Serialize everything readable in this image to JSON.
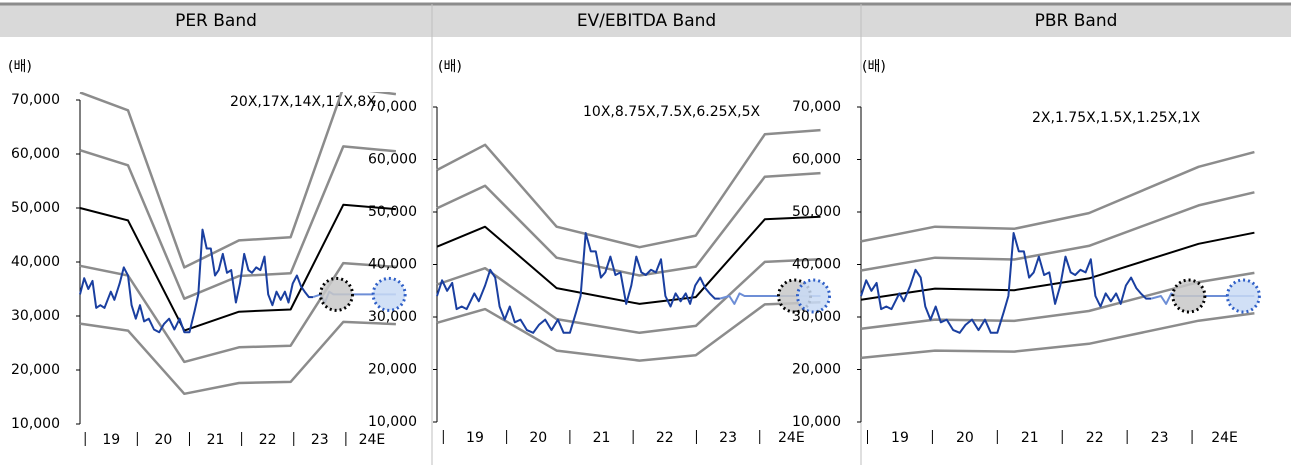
{
  "chart_data": [
    {
      "type": "line",
      "title": "PER Band",
      "y_unit": "(배)",
      "annotation": "20X,17X,14X,11X,8X",
      "categories": [
        "19",
        "20",
        "21",
        "22",
        "23",
        "24E"
      ],
      "xlim": [
        -0.1,
        6
      ],
      "xticks": [
        0,
        1,
        2,
        3,
        4,
        5
      ],
      "ylim": [
        10000,
        70000
      ],
      "yticks": [
        {
          "value": 10000,
          "label": "10,000"
        },
        {
          "value": 20000,
          "label": "20,000"
        },
        {
          "value": 30000,
          "label": "30,000"
        },
        {
          "value": 40000,
          "label": "40,000"
        },
        {
          "value": 50000,
          "label": "50,000"
        },
        {
          "value": 60000,
          "label": "60,000"
        },
        {
          "value": 70000,
          "label": "70,000"
        }
      ],
      "series": [
        {
          "color": "#8c8c8c",
          "x": [
            -0.1,
            0.82,
            1.9,
            2.95,
            3.94,
            4.95,
            5.96
          ],
          "values": [
            71400,
            68100,
            39000,
            44000,
            44600,
            72300,
            71100
          ]
        },
        {
          "color": "#8c8c8c",
          "x": [
            -0.1,
            0.82,
            1.9,
            2.95,
            3.94,
            4.95,
            5.96
          ],
          "values": [
            60700,
            57900,
            33200,
            37400,
            37900,
            61400,
            60500
          ]
        },
        {
          "color": "#000000",
          "x": [
            -0.1,
            0.82,
            1.9,
            2.95,
            3.94,
            4.95,
            5.96
          ],
          "values": [
            50000,
            47700,
            27300,
            30800,
            31200,
            50600,
            49800
          ]
        },
        {
          "color": "#8c8c8c",
          "x": [
            -0.1,
            0.82,
            1.9,
            2.95,
            3.94,
            4.95,
            5.96
          ],
          "values": [
            39300,
            37500,
            21500,
            24200,
            24500,
            39800,
            39100
          ]
        },
        {
          "color": "#8c8c8c",
          "x": [
            -0.1,
            0.82,
            1.9,
            2.95,
            3.94,
            4.95,
            5.96
          ],
          "values": [
            28600,
            27300,
            15600,
            17600,
            17800,
            28900,
            28500
          ]
        },
        {
          "color": "#1a3fa0",
          "x": [
            -0.1,
            -0.02,
            0.06,
            0.14,
            0.21,
            0.29,
            0.37,
            0.49,
            0.56,
            0.66,
            0.74,
            0.82,
            0.89,
            0.97,
            1.05,
            1.13,
            1.22,
            1.32,
            1.42,
            1.51,
            1.61,
            1.71,
            1.81,
            1.9,
            2.0,
            2.1,
            2.17,
            2.25,
            2.33,
            2.41,
            2.49,
            2.56,
            2.64,
            2.72,
            2.8,
            2.89,
            2.97,
            3.05,
            3.13,
            3.2,
            3.28,
            3.36,
            3.44,
            3.51,
            3.59,
            3.67,
            3.75,
            3.83,
            3.9,
            3.98,
            4.06,
            4.14,
            4.21,
            4.29,
            4.37
          ],
          "values": [
            34000,
            37000,
            35000,
            36500,
            31500,
            32000,
            31500,
            34500,
            33000,
            36000,
            39000,
            37500,
            32000,
            29500,
            32000,
            29000,
            29500,
            27500,
            27000,
            28500,
            29500,
            27500,
            29500,
            27000,
            27000,
            31000,
            34000,
            46000,
            42500,
            42500,
            37500,
            38500,
            41500,
            38000,
            38500,
            32500,
            36000,
            41500,
            38500,
            38000,
            39000,
            38500,
            41000,
            34000,
            32000,
            34500,
            33000,
            34500,
            32500,
            36000,
            37500,
            35500,
            34500,
            33500,
            33500
          ]
        },
        {
          "color": "#6d8ed6",
          "x": [
            4.37,
            4.52,
            4.6,
            4.68,
            4.76,
            5.96
          ],
          "values": [
            33500,
            34000,
            32500,
            34500,
            34000,
            34000
          ]
        }
      ],
      "highlights": [
        {
          "x": 4.82,
          "y": 34000,
          "color": "#000000",
          "fill": "#c8c8c8"
        },
        {
          "x": 5.83,
          "y": 34000,
          "color": "#2f5fc7",
          "fill": "#c9daf5"
        }
      ]
    },
    {
      "type": "line",
      "title": "EV/EBITDA Band",
      "y_unit": "(배)",
      "annotation": "10X,8.75X,7.5X,6.25X,5X",
      "categories": [
        "19",
        "20",
        "21",
        "22",
        "23",
        "24E"
      ],
      "xlim": [
        -0.1,
        6
      ],
      "xticks": [
        0,
        1,
        2,
        3,
        4,
        5
      ],
      "ylim": [
        10000,
        70000
      ],
      "yticks": [
        {
          "value": 10000,
          "label": "10,000"
        },
        {
          "value": 20000,
          "label": "20,000"
        },
        {
          "value": 30000,
          "label": "30,000"
        },
        {
          "value": 40000,
          "label": "40,000"
        },
        {
          "value": 50000,
          "label": "50,000"
        },
        {
          "value": 60000,
          "label": "60,000"
        },
        {
          "value": 70000,
          "label": "70,000"
        }
      ],
      "series": [
        {
          "color": "#8c8c8c",
          "x": [
            -0.1,
            0.66,
            1.79,
            3.1,
            3.99,
            5.08,
            5.96
          ],
          "values": [
            58000,
            62800,
            47200,
            43300,
            45500,
            64800,
            65600
          ]
        },
        {
          "color": "#8c8c8c",
          "x": [
            -0.1,
            0.66,
            1.79,
            3.1,
            3.99,
            5.08,
            5.96
          ],
          "values": [
            50700,
            55000,
            41300,
            37900,
            39600,
            56700,
            57400
          ]
        },
        {
          "color": "#000000",
          "x": [
            -0.1,
            0.66,
            1.79,
            3.1,
            3.99,
            5.08,
            5.96
          ],
          "values": [
            43400,
            47200,
            35500,
            32500,
            33800,
            48600,
            49100
          ]
        },
        {
          "color": "#8c8c8c",
          "x": [
            -0.1,
            0.66,
            1.79,
            3.1,
            3.99,
            5.08,
            5.96
          ],
          "values": [
            36200,
            39300,
            29600,
            27000,
            28300,
            40500,
            41000
          ]
        },
        {
          "color": "#8c8c8c",
          "x": [
            -0.1,
            0.66,
            1.79,
            3.1,
            3.99,
            5.08,
            5.96
          ],
          "values": [
            28900,
            31500,
            23600,
            21700,
            22700,
            32400,
            32800
          ]
        },
        {
          "color": "#1a3fa0",
          "x": [
            -0.1,
            -0.02,
            0.06,
            0.14,
            0.21,
            0.29,
            0.37,
            0.49,
            0.56,
            0.66,
            0.74,
            0.82,
            0.89,
            0.97,
            1.05,
            1.13,
            1.22,
            1.32,
            1.42,
            1.51,
            1.61,
            1.71,
            1.81,
            1.9,
            2.0,
            2.1,
            2.17,
            2.25,
            2.33,
            2.41,
            2.49,
            2.56,
            2.64,
            2.72,
            2.8,
            2.89,
            2.97,
            3.05,
            3.13,
            3.2,
            3.28,
            3.36,
            3.44,
            3.51,
            3.59,
            3.67,
            3.75,
            3.83,
            3.9,
            3.98,
            4.06,
            4.14,
            4.21,
            4.29,
            4.37
          ],
          "values": [
            34000,
            37000,
            35000,
            36500,
            31500,
            32000,
            31500,
            34500,
            33000,
            36000,
            39000,
            37500,
            32000,
            29500,
            32000,
            29000,
            29500,
            27500,
            27000,
            28500,
            29500,
            27500,
            29500,
            27000,
            27000,
            31000,
            34000,
            46000,
            42500,
            42500,
            37500,
            38500,
            41500,
            38000,
            38500,
            32500,
            36000,
            41500,
            38500,
            38000,
            39000,
            38500,
            41000,
            34000,
            32000,
            34500,
            33000,
            34500,
            32500,
            36000,
            37500,
            35500,
            34500,
            33500,
            33500
          ]
        },
        {
          "color": "#6d8ed6",
          "x": [
            4.37,
            4.52,
            4.6,
            4.68,
            4.76,
            5.96
          ],
          "values": [
            33500,
            34000,
            32500,
            34500,
            34000,
            34000
          ]
        }
      ],
      "highlights": [
        {
          "x": 5.55,
          "y": 34000,
          "color": "#000000",
          "fill": "#c8c8c8"
        },
        {
          "x": 5.85,
          "y": 34000,
          "color": "#2f5fc7",
          "fill": "#c9daf5"
        }
      ]
    },
    {
      "type": "line",
      "title": "PBR Band",
      "y_unit": "(배)",
      "annotation": "2X,1.75X,1.5X,1.25X,1X",
      "categories": [
        "19",
        "20",
        "21",
        "22",
        "23",
        "24E"
      ],
      "xlim": [
        -0.1,
        6
      ],
      "xticks": [
        0,
        1,
        2,
        3,
        4,
        5
      ],
      "ylim": [
        10000,
        70000
      ],
      "yticks": [
        {
          "value": 10000,
          "label": "10,000"
        },
        {
          "value": 20000,
          "label": "20,000"
        },
        {
          "value": 30000,
          "label": "30,000"
        },
        {
          "value": 40000,
          "label": "40,000"
        },
        {
          "value": 50000,
          "label": "50,000"
        },
        {
          "value": 60000,
          "label": "60,000"
        },
        {
          "value": 70000,
          "label": "70,000"
        }
      ],
      "series": [
        {
          "color": "#8c8c8c",
          "x": [
            -0.1,
            1.04,
            2.26,
            3.41,
            5.1,
            5.96
          ],
          "values": [
            44400,
            47200,
            46800,
            49800,
            58600,
            61400
          ]
        },
        {
          "color": "#8c8c8c",
          "x": [
            -0.1,
            1.04,
            2.26,
            3.41,
            5.1,
            5.96
          ],
          "values": [
            38850,
            41300,
            40950,
            43550,
            51250,
            53750
          ]
        },
        {
          "color": "#000000",
          "x": [
            -0.1,
            1.04,
            2.26,
            3.41,
            5.1,
            5.96
          ],
          "values": [
            33300,
            35400,
            35100,
            37350,
            43950,
            46050
          ]
        },
        {
          "color": "#8c8c8c",
          "x": [
            -0.1,
            1.04,
            2.26,
            3.41,
            5.1,
            5.96
          ],
          "values": [
            27750,
            29500,
            29250,
            31150,
            36650,
            38400
          ]
        },
        {
          "color": "#8c8c8c",
          "x": [
            -0.1,
            1.04,
            2.26,
            3.41,
            5.1,
            5.96
          ],
          "values": [
            22200,
            23600,
            23400,
            24900,
            29300,
            30700
          ]
        },
        {
          "color": "#1a3fa0",
          "x": [
            -0.1,
            -0.02,
            0.06,
            0.14,
            0.21,
            0.29,
            0.37,
            0.49,
            0.56,
            0.66,
            0.74,
            0.82,
            0.89,
            0.97,
            1.05,
            1.13,
            1.22,
            1.32,
            1.42,
            1.51,
            1.61,
            1.71,
            1.81,
            1.9,
            2.0,
            2.1,
            2.17,
            2.25,
            2.33,
            2.41,
            2.49,
            2.56,
            2.64,
            2.72,
            2.8,
            2.89,
            2.97,
            3.05,
            3.13,
            3.2,
            3.28,
            3.36,
            3.44,
            3.51,
            3.59,
            3.67,
            3.75,
            3.83,
            3.9,
            3.98,
            4.06,
            4.14,
            4.21,
            4.29,
            4.37
          ],
          "values": [
            34000,
            37000,
            35000,
            36500,
            31500,
            32000,
            31500,
            34500,
            33000,
            36000,
            39000,
            37500,
            32000,
            29500,
            32000,
            29000,
            29500,
            27500,
            27000,
            28500,
            29500,
            27500,
            29500,
            27000,
            27000,
            31000,
            34000,
            46000,
            42500,
            42500,
            37500,
            38500,
            41500,
            38000,
            38500,
            32500,
            36000,
            41500,
            38500,
            38000,
            39000,
            38500,
            41000,
            34000,
            32000,
            34500,
            33000,
            34500,
            32500,
            36000,
            37500,
            35500,
            34500,
            33500,
            33500
          ]
        },
        {
          "color": "#6d8ed6",
          "x": [
            4.37,
            4.52,
            4.6,
            4.68,
            4.76,
            5.96
          ],
          "values": [
            33500,
            34000,
            32500,
            34500,
            34000,
            34000
          ]
        }
      ],
      "highlights": [
        {
          "x": 4.95,
          "y": 34000,
          "color": "#000000",
          "fill": "#c8c8c8"
        },
        {
          "x": 5.79,
          "y": 34000,
          "color": "#2f5fc7",
          "fill": "#c9daf5"
        }
      ]
    }
  ]
}
